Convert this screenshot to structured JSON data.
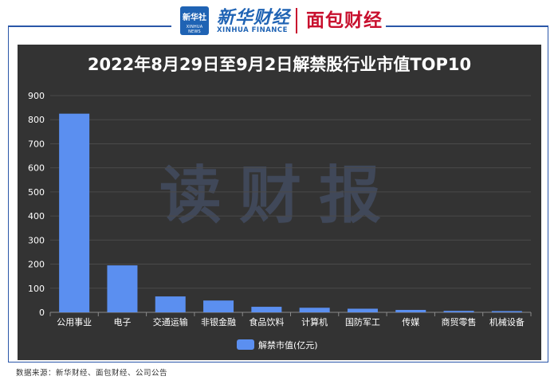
{
  "header": {
    "badge_line1": "新华社",
    "badge_line2": "XINHUA NEWS",
    "brand_cn": "新华财经",
    "brand_en": "XINHUA FINANCE",
    "partner": "面包财经"
  },
  "watermark": "读财报",
  "source": "数据来源：新华财经、面包财经、公司公告",
  "colors": {
    "bar": "#5b8ff0",
    "panel": "#333333",
    "brand_blue": "#1f63b4",
    "brand_red": "#c8102e"
  },
  "chart_data": {
    "type": "bar",
    "title": "2022年8月29日至9月2日解禁股行业市值TOP10",
    "categories": [
      "公用事业",
      "电子",
      "交通运输",
      "非银金融",
      "食品饮料",
      "计算机",
      "国防军工",
      "传媒",
      "商贸零售",
      "机械设备"
    ],
    "series": [
      {
        "name": "解禁市值(亿元)",
        "values": [
          825,
          195,
          66,
          49,
          23,
          19,
          15,
          10,
          6,
          5
        ]
      }
    ],
    "ylim": [
      0,
      900
    ],
    "yticks": [
      0,
      100,
      200,
      300,
      400,
      500,
      600,
      700,
      800,
      900
    ],
    "grid": true,
    "legend": "bottom-center"
  }
}
